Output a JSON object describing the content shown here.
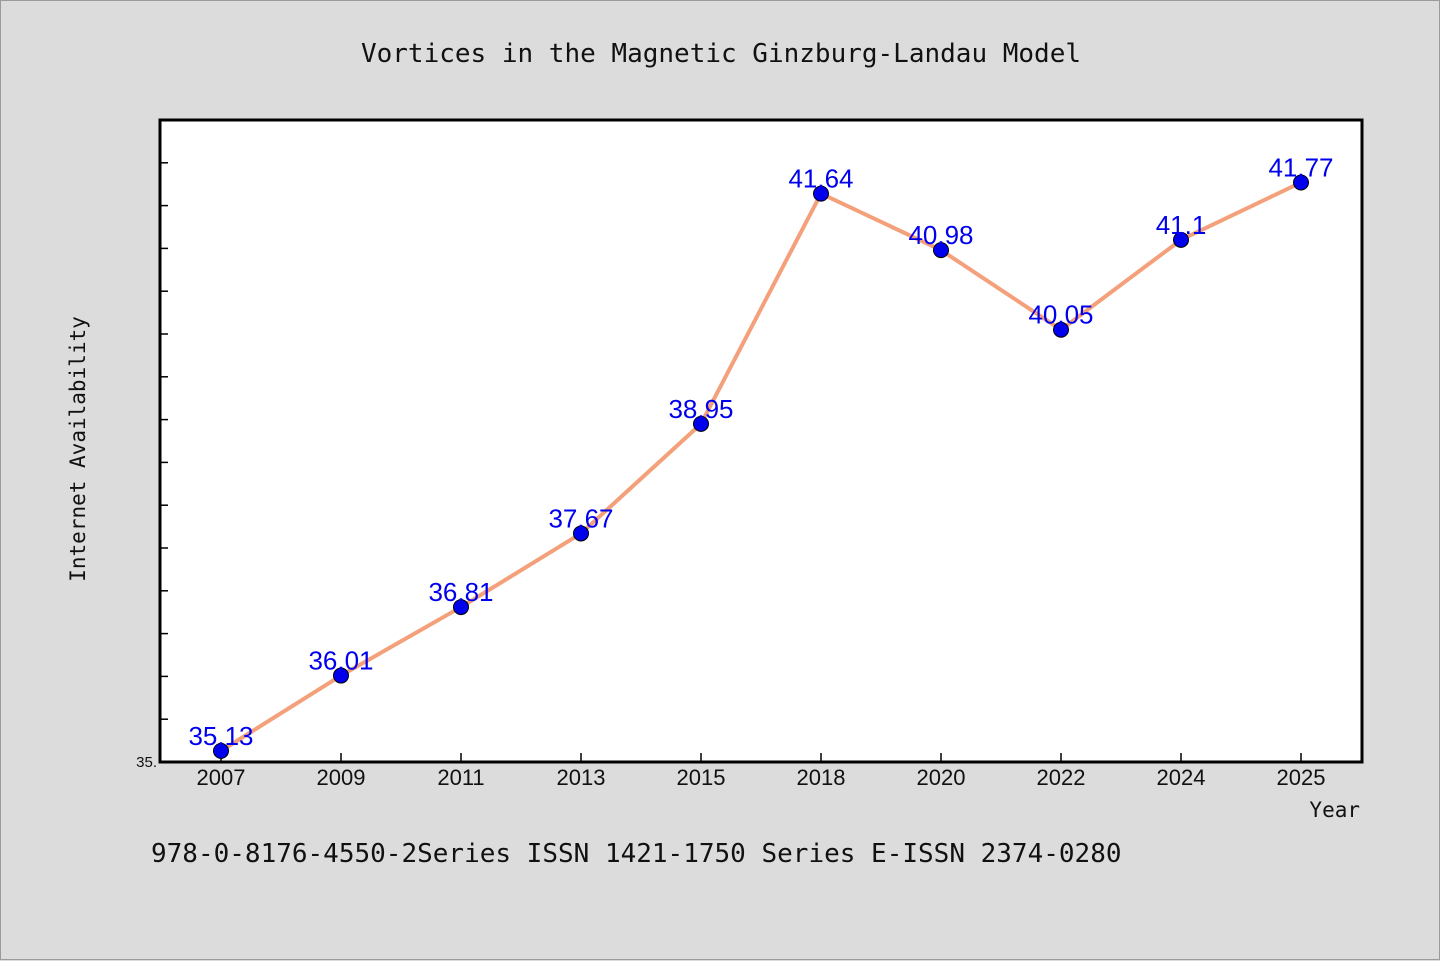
{
  "chart_data": {
    "type": "line",
    "title": "Vortices in the Magnetic Ginzburg-Landau Model",
    "xlabel": "Year",
    "ylabel": "Internet Availability",
    "categories": [
      "2007",
      "2009",
      "2011",
      "2013",
      "2015",
      "2018",
      "2020",
      "2022",
      "2024",
      "2025"
    ],
    "series": [
      {
        "values": [
          35.13,
          36.01,
          36.81,
          37.67,
          38.95,
          41.64,
          40.98,
          40.05,
          41.1,
          41.77
        ],
        "labels": [
          "35.13",
          "36.01",
          "36.81",
          "37.67",
          "38.95",
          "41.64",
          "40.98",
          "40.05",
          "41.1",
          "41.77"
        ]
      }
    ],
    "ylim": [
      35.0,
      42.5
    ],
    "y_tick_label": "35.",
    "grid": false,
    "legend": "none",
    "colors": {
      "line": "#f4a07a",
      "marker": "#0000ee",
      "label": "#0000ee"
    }
  },
  "footer": {
    "text": "978-0-8176-4550-2Series ISSN 1421-1750 Series E-ISSN 2374-0280"
  }
}
